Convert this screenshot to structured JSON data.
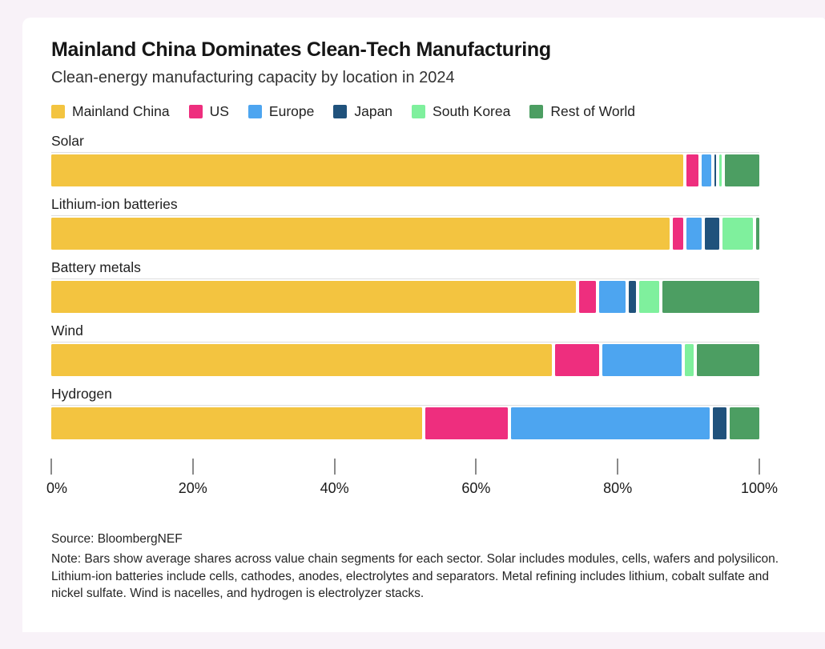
{
  "card": {
    "title": "Mainland China Dominates Clean-Tech Manufacturing",
    "subtitle": "Clean-energy manufacturing capacity by location in 2024"
  },
  "chart_data": {
    "type": "bar",
    "stacked": true,
    "orientation": "horizontal",
    "unit": "percent",
    "categories": [
      "Solar",
      "Lithium-ion batteries",
      "Battery metals",
      "Wind",
      "Hydrogen"
    ],
    "series": [
      {
        "name": "Mainland China",
        "color": "#F3C440",
        "values": [
          91.3,
          89.3,
          75.8,
          72.0,
          53.3
        ]
      },
      {
        "name": "US",
        "color": "#EE2E7E",
        "values": [
          1.8,
          1.5,
          2.4,
          6.3,
          11.9
        ]
      },
      {
        "name": "Europe",
        "color": "#4DA5F0",
        "values": [
          1.3,
          2.3,
          3.9,
          11.5,
          28.6
        ]
      },
      {
        "name": "Japan",
        "color": "#20527C",
        "values": [
          0.3,
          2.0,
          1.0,
          0,
          1.9
        ]
      },
      {
        "name": "South Korea",
        "color": "#7FF09D",
        "values": [
          0.3,
          4.4,
          2.9,
          1.2,
          0
        ]
      },
      {
        "name": "Rest of World",
        "color": "#4C9E62",
        "values": [
          5.0,
          0.5,
          14.0,
          9.0,
          4.3
        ]
      }
    ],
    "x_axis": {
      "range": [
        0,
        100
      ],
      "tick_labels": [
        "0%",
        "20%",
        "40%",
        "60%",
        "80%",
        "100%"
      ],
      "tick_values": [
        0,
        20,
        40,
        60,
        80,
        100
      ]
    },
    "legend_position": "top",
    "grid": false,
    "bar_gap_color": "#FFFFFF"
  },
  "footer": {
    "source": "Source: BloombergNEF",
    "note": "Note: Bars show average shares across value chain segments for each sector. Solar includes modules, cells, wafers and polysilicon. Lithium-ion batteries include cells, cathodes, anodes, electrolytes and separators. Metal refining includes lithium, cobalt sulfate and nickel sulfate. Wind is nacelles, and hydrogen is electrolyzer stacks."
  }
}
